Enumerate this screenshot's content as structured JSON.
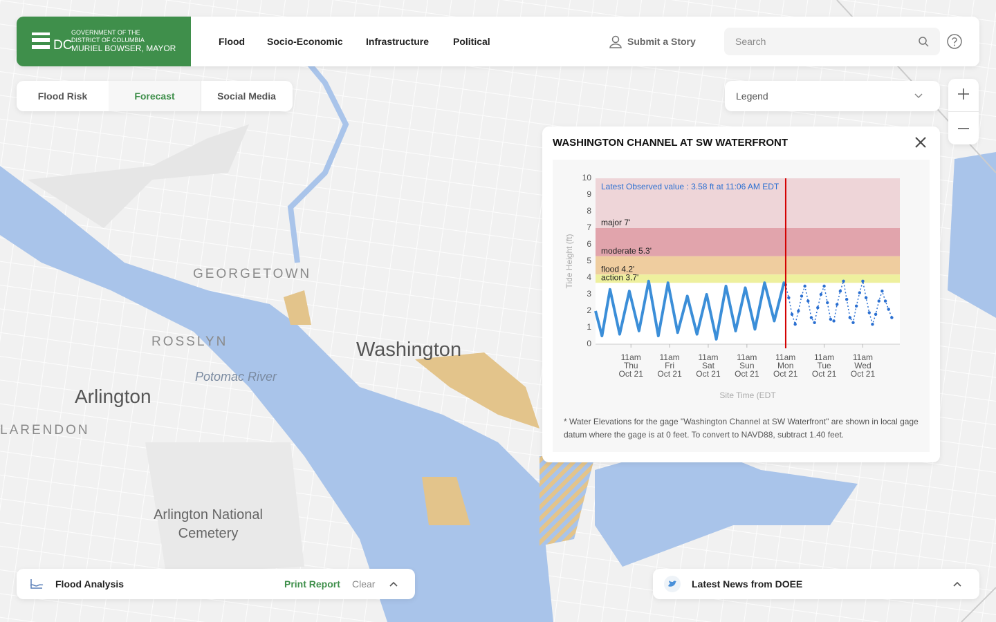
{
  "header": {
    "logo": {
      "line1": "GOVERNMENT OF THE",
      "line2": "DISTRICT OF COLUMBIA",
      "initials": "DC",
      "mayor": "MURIEL BOWSER, MAYOR"
    },
    "nav": [
      "Flood",
      "Socio-Economic",
      "Infrastructure",
      "Political"
    ],
    "submit": "Submit a Story",
    "search_placeholder": "Search"
  },
  "tabs": [
    "Flood Risk",
    "Forecast",
    "Social Media"
  ],
  "legend": "Legend",
  "map_labels": [
    "GEORGETOWN",
    "ROSSLYN",
    "Washington",
    "Potomac River",
    "Arlington",
    "LARENDON",
    "Arlington National Cemetery"
  ],
  "panel": {
    "title": "WASHINGTON CHANNEL AT SW WATERFRONT",
    "footnote": "* Water Elevations for the gage \"Washington Channel at SW Waterfront\" are shown in local gage datum where the gage is at 0 feet. To convert to NAVD88, subtract 1.40 feet."
  },
  "chart_data": {
    "type": "line",
    "y_label": "Tide Height (ft)",
    "x_label": "Site Time (EDT",
    "annotation": "Latest Observed value : 3.58 ft at 11:06 AM EDT",
    "ylim": [
      0,
      10
    ],
    "yticks": [
      0,
      1,
      2,
      3,
      4,
      5,
      6,
      7,
      8,
      9,
      10
    ],
    "xlim": [
      2,
      191
    ],
    "xticks": [
      {
        "value": 24,
        "label": [
          "11am",
          "Thu",
          "Oct 21"
        ]
      },
      {
        "value": 48,
        "label": [
          "11am",
          "Fri",
          "Oct 21"
        ]
      },
      {
        "value": 72,
        "label": [
          "11am",
          "Sat",
          "Oct 21"
        ]
      },
      {
        "value": 96,
        "label": [
          "11am",
          "Sun",
          "Oct 21"
        ]
      },
      {
        "value": 120,
        "label": [
          "11am",
          "Mon",
          "Oct 21"
        ]
      },
      {
        "value": 144,
        "label": [
          "11am",
          "Tue",
          "Oct 21"
        ]
      },
      {
        "value": 168,
        "label": [
          "11am",
          "Wed",
          "Oct 21"
        ]
      }
    ],
    "current_time": 120.1,
    "current_color": "#d40000",
    "bands": [
      {
        "label": "major 7'",
        "from": 7,
        "to": 10,
        "color": "#eed5d8"
      },
      {
        "label": "moderate 5.3'",
        "from": 5.3,
        "to": 7,
        "color": "#e1a4ac"
      },
      {
        "label": "flood 4.2'",
        "from": 4.2,
        "to": 5.3,
        "color": "#efcd9f"
      },
      {
        "label": "action 3.7'",
        "from": 3.7,
        "to": 4.2,
        "color": "#eef09e"
      }
    ],
    "series": [
      {
        "color": "#3b8ed8",
        "style": "solid",
        "x": [
          2,
          6,
          11,
          17,
          23,
          29,
          35,
          41,
          47,
          53,
          59,
          65,
          71,
          77,
          83,
          89,
          95,
          101,
          107,
          113,
          119,
          120.1
        ],
        "values": [
          2.0,
          0.5,
          3.3,
          0.6,
          3.2,
          0.8,
          3.8,
          0.5,
          3.7,
          0.7,
          2.9,
          0.6,
          3.0,
          0.3,
          3.5,
          0.8,
          3.4,
          0.9,
          3.7,
          1.4,
          3.7,
          3.58
        ]
      },
      {
        "color": "#2a6fd1",
        "style": "dotted",
        "x": [
          120,
          122,
          124,
          126,
          128,
          130,
          132,
          134,
          136,
          138,
          140,
          142,
          144,
          146,
          148,
          150,
          152,
          154,
          156,
          158,
          160,
          162,
          164,
          166,
          168,
          170,
          172,
          174,
          176,
          178,
          180,
          182,
          184,
          186
        ],
        "values": [
          3.58,
          2.8,
          1.8,
          1.2,
          2.0,
          2.9,
          3.5,
          2.6,
          1.6,
          1.3,
          2.2,
          3.0,
          3.5,
          2.5,
          1.5,
          1.4,
          2.4,
          3.2,
          3.8,
          2.7,
          1.6,
          1.3,
          2.3,
          3.1,
          3.8,
          2.8,
          1.9,
          1.2,
          1.8,
          2.6,
          3.2,
          2.6,
          2.1,
          1.6
        ]
      }
    ]
  },
  "footer": {
    "analysis": "Flood Analysis",
    "print": "Print Report",
    "clear": "Clear",
    "news": "Latest News from DOEE"
  }
}
